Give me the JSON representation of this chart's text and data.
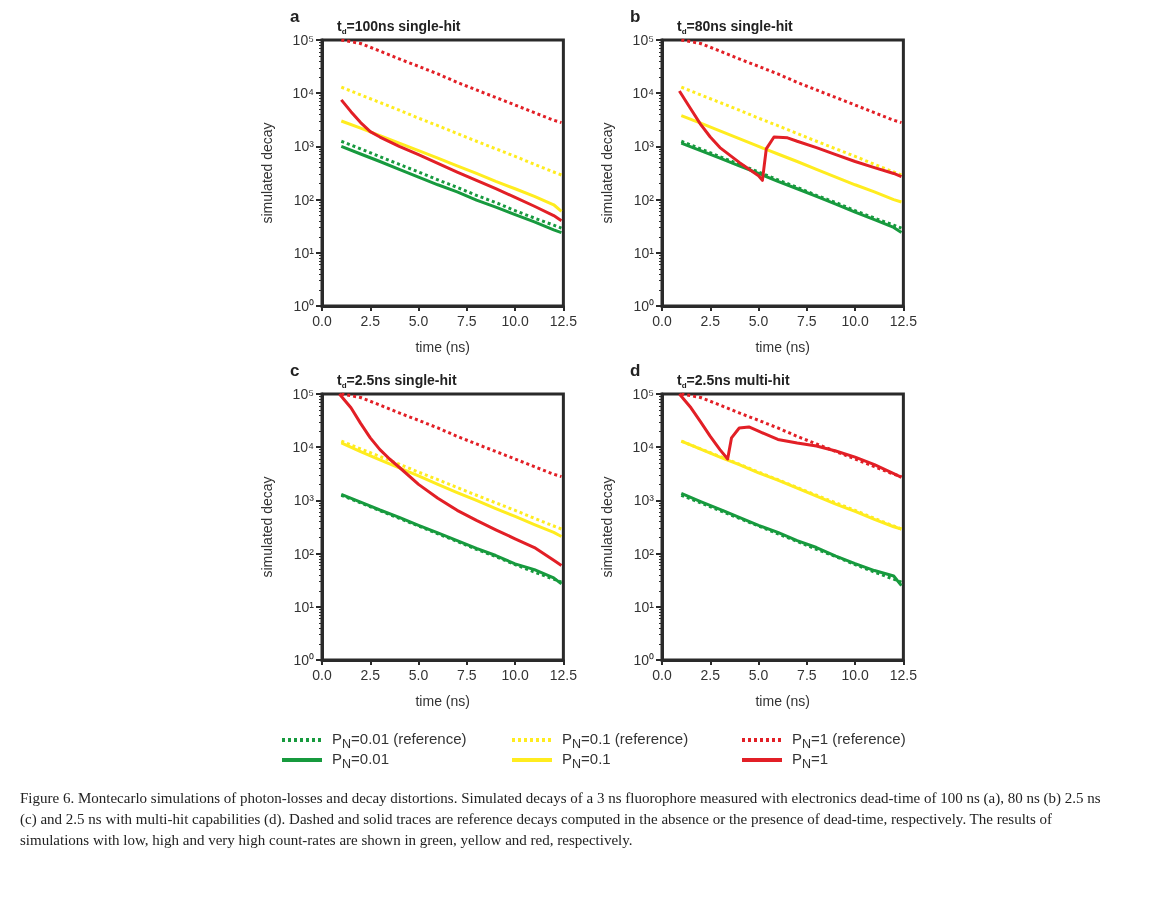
{
  "chart_data": [
    {
      "type": "line",
      "title": "t$_{d}$=100ns single-hit",
      "xlabel": "time (ns)",
      "ylabel": "simulated decay",
      "annotations": [
        "a"
      ],
      "log": "y",
      "marker": "none",
      "xlim": [
        0,
        12.5
      ],
      "ylim": [
        1,
        100000
      ],
      "xticks": [
        {
          "value": 0,
          "label": "0.0"
        },
        2.5,
        {
          "value": 5,
          "label": "5.0"
        },
        7.5,
        {
          "value": 10,
          "label": "10.0"
        },
        12.5
      ],
      "yticks": [
        {
          "value": 1,
          "label": "10⁰"
        },
        {
          "value": 10,
          "label": "10¹"
        },
        {
          "value": 100,
          "label": "10²"
        },
        {
          "value": 1000,
          "label": "10³"
        },
        {
          "value": 10000,
          "label": "10⁴"
        },
        {
          "value": 100000,
          "label": "10⁵"
        }
      ],
      "x": [
        1,
        2,
        3,
        4,
        5,
        6,
        7,
        8,
        9,
        10,
        11,
        12,
        12.4
      ],
      "series": [
        {
          "color": "#179a3e",
          "line_style": "dotted",
          "values": [
            1250,
            900,
            640,
            460,
            330,
            235,
            170,
            120,
            88,
            62,
            45,
            33,
            29
          ]
        },
        {
          "color": "#179a3e",
          "line_style": "solid",
          "values": [
            1000,
            720,
            520,
            370,
            265,
            190,
            140,
            98,
            72,
            52,
            38,
            27,
            24
          ]
        },
        {
          "color": "#ffec1f",
          "line_style": "dotted",
          "values": [
            13000,
            9300,
            6700,
            4800,
            3400,
            2450,
            1750,
            1250,
            900,
            650,
            460,
            330,
            290
          ]
        },
        {
          "color": "#ffec1f",
          "line_style": "solid",
          "values": [
            3000,
            2200,
            1600,
            1150,
            830,
            600,
            430,
            310,
            220,
            160,
            115,
            80,
            60
          ]
        },
        {
          "color": "#e21f26",
          "line_style": "dotted",
          "values": [
            100000,
            86000,
            62000,
            44000,
            32000,
            23000,
            16000,
            11500,
            8300,
            6000,
            4300,
            3100,
            2800
          ]
        },
        {
          "color": "#e21f26",
          "line_style": "solid",
          "x": [
            1,
            1.5,
            2,
            2.5,
            3,
            4,
            5,
            6,
            7,
            8,
            9,
            10,
            11,
            12,
            12.4
          ],
          "values": [
            7500,
            4500,
            2800,
            1900,
            1500,
            1000,
            700,
            480,
            330,
            230,
            160,
            110,
            75,
            50,
            40
          ]
        }
      ]
    },
    {
      "type": "line",
      "title": "t$_{d}$=80ns single-hit",
      "xlabel": "time (ns)",
      "ylabel": "simulated decay",
      "annotations": [
        "b"
      ],
      "log": "y",
      "marker": "none",
      "xlim": [
        0,
        12.5
      ],
      "ylim": [
        1,
        100000
      ],
      "xticks": [
        {
          "value": 0,
          "label": "0.0"
        },
        2.5,
        {
          "value": 5,
          "label": "5.0"
        },
        7.5,
        {
          "value": 10,
          "label": "10.0"
        },
        12.5
      ],
      "yticks": [
        {
          "value": 1,
          "label": "10⁰"
        },
        {
          "value": 10,
          "label": "10¹"
        },
        {
          "value": 100,
          "label": "10²"
        },
        {
          "value": 1000,
          "label": "10³"
        },
        {
          "value": 10000,
          "label": "10⁴"
        },
        {
          "value": 100000,
          "label": "10⁵"
        }
      ],
      "x": [
        1,
        2,
        3,
        4,
        5,
        6,
        7,
        8,
        9,
        10,
        11,
        12,
        12.4
      ],
      "series": [
        {
          "color": "#179a3e",
          "line_style": "dotted",
          "values": [
            1250,
            900,
            640,
            460,
            330,
            235,
            170,
            120,
            88,
            62,
            45,
            33,
            29
          ]
        },
        {
          "color": "#179a3e",
          "line_style": "solid",
          "values": [
            1150,
            830,
            600,
            430,
            310,
            220,
            160,
            115,
            82,
            58,
            42,
            30,
            24
          ]
        },
        {
          "color": "#ffec1f",
          "line_style": "dotted",
          "values": [
            13000,
            9300,
            6700,
            4800,
            3400,
            2450,
            1750,
            1250,
            900,
            650,
            460,
            330,
            290
          ]
        },
        {
          "color": "#ffec1f",
          "line_style": "solid",
          "values": [
            3800,
            2750,
            1950,
            1400,
            1000,
            720,
            520,
            370,
            265,
            190,
            140,
            100,
            90
          ]
        },
        {
          "color": "#e21f26",
          "line_style": "dotted",
          "values": [
            100000,
            86000,
            62000,
            44000,
            32000,
            23000,
            16000,
            11500,
            8300,
            6000,
            4300,
            3100,
            2800
          ]
        },
        {
          "color": "#e21f26",
          "line_style": "solid",
          "x": [
            0.9,
            1.5,
            2,
            2.5,
            3,
            4,
            5,
            5.2,
            5.4,
            5.8,
            6.5,
            7,
            8,
            9,
            10,
            11,
            12,
            12.4
          ],
          "values": [
            11000,
            5000,
            2600,
            1500,
            950,
            500,
            280,
            230,
            900,
            1500,
            1450,
            1250,
            950,
            700,
            520,
            400,
            310,
            270
          ]
        }
      ]
    },
    {
      "type": "line",
      "title": "t$_{d}$=2.5ns single-hit",
      "xlabel": "time (ns)",
      "ylabel": "simulated decay",
      "annotations": [
        "c"
      ],
      "log": "y",
      "marker": "none",
      "xlim": [
        0,
        12.5
      ],
      "ylim": [
        1,
        100000
      ],
      "xticks": [
        {
          "value": 0,
          "label": "0.0"
        },
        2.5,
        {
          "value": 5,
          "label": "5.0"
        },
        7.5,
        {
          "value": 10,
          "label": "10.0"
        },
        12.5
      ],
      "yticks": [
        {
          "value": 1,
          "label": "10⁰"
        },
        {
          "value": 10,
          "label": "10¹"
        },
        {
          "value": 100,
          "label": "10²"
        },
        {
          "value": 1000,
          "label": "10³"
        },
        {
          "value": 10000,
          "label": "10⁴"
        },
        {
          "value": 100000,
          "label": "10⁵"
        }
      ],
      "x": [
        1,
        2,
        3,
        4,
        5,
        6,
        7,
        8,
        9,
        10,
        11,
        12,
        12.4
      ],
      "series": [
        {
          "color": "#179a3e",
          "line_style": "dotted",
          "values": [
            1250,
            900,
            640,
            460,
            330,
            235,
            170,
            120,
            88,
            62,
            45,
            33,
            29
          ]
        },
        {
          "color": "#179a3e",
          "line_style": "solid",
          "values": [
            1300,
            930,
            660,
            480,
            340,
            245,
            175,
            125,
            92,
            64,
            50,
            35,
            27
          ]
        },
        {
          "color": "#ffec1f",
          "line_style": "dotted",
          "values": [
            13000,
            9300,
            6700,
            4800,
            3400,
            2450,
            1750,
            1250,
            900,
            650,
            460,
            330,
            290
          ]
        },
        {
          "color": "#ffec1f",
          "line_style": "solid",
          "values": [
            12000,
            8300,
            5800,
            4100,
            2900,
            2000,
            1400,
            1000,
            700,
            500,
            350,
            250,
            210
          ]
        },
        {
          "color": "#e21f26",
          "line_style": "dotted",
          "values": [
            100000,
            86000,
            62000,
            44000,
            32000,
            23000,
            16000,
            11500,
            8300,
            6000,
            4300,
            3100,
            2800
          ]
        },
        {
          "color": "#e21f26",
          "line_style": "solid",
          "x": [
            0.9,
            1.5,
            2,
            2.5,
            3,
            3.5,
            4,
            5,
            6,
            7,
            8,
            9,
            10,
            11,
            12,
            12.4
          ],
          "values": [
            100000,
            55000,
            28000,
            15000,
            9000,
            6000,
            4200,
            2000,
            1100,
            650,
            420,
            280,
            190,
            130,
            75,
            60
          ]
        }
      ]
    },
    {
      "type": "line",
      "title": "t$_{d}$=2.5ns multi-hit",
      "xlabel": "time (ns)",
      "ylabel": "simulated decay",
      "annotations": [
        "d",
        "Figure 6. Montecarlo simulations of photon-losses and decay distortions. Simulated decays of a 3 ns fluorophore measured with electronics dead-time of 100 ns (a), 80 ns (b) 2.5 ns (c) and 2.5 ns with multi-hit capabilities (d). Dashed and solid traces are reference decays computed in the absence or the presence of dead-time, respectively. The results of simulations with low, high and very high count-rates are shown in green, yellow and red, respectively."
      ],
      "log": "y",
      "marker": "none",
      "legend": "bottom",
      "xlim": [
        0,
        12.5
      ],
      "ylim": [
        1,
        100000
      ],
      "xticks": [
        {
          "value": 0,
          "label": "0.0"
        },
        2.5,
        {
          "value": 5,
          "label": "5.0"
        },
        7.5,
        {
          "value": 10,
          "label": "10.0"
        },
        12.5
      ],
      "yticks": [
        {
          "value": 1,
          "label": "10⁰"
        },
        {
          "value": 10,
          "label": "10¹"
        },
        {
          "value": 100,
          "label": "10²"
        },
        {
          "value": 1000,
          "label": "10³"
        },
        {
          "value": 10000,
          "label": "10⁴"
        },
        {
          "value": 100000,
          "label": "10⁵"
        }
      ],
      "x": [
        1,
        2,
        3,
        4,
        5,
        6,
        7,
        8,
        9,
        10,
        11,
        12,
        12.4
      ],
      "series": [
        {
          "name": "P$_{N}$=0.01 (reference)",
          "color": "#179a3e",
          "line_style": "dotted",
          "values": [
            1250,
            900,
            640,
            460,
            330,
            235,
            170,
            120,
            88,
            62,
            45,
            33,
            29
          ]
        },
        {
          "name": "P$_{N}$=0.01",
          "color": "#179a3e",
          "line_style": "solid",
          "values": [
            1350,
            950,
            680,
            480,
            340,
            250,
            175,
            130,
            90,
            65,
            48,
            38,
            25
          ]
        },
        {
          "name": "P$_{N}$=0.1 (reference)",
          "color": "#ffec1f",
          "line_style": "dotted",
          "values": [
            13000,
            9300,
            6700,
            4800,
            3400,
            2450,
            1750,
            1250,
            900,
            650,
            460,
            330,
            290
          ]
        },
        {
          "name": "P$_{N}$=0.1",
          "color": "#ffec1f",
          "line_style": "solid",
          "values": [
            13000,
            9200,
            6500,
            4700,
            3300,
            2400,
            1700,
            1200,
            850,
            620,
            440,
            320,
            290
          ]
        },
        {
          "name": "P$_{N}$=1 (reference)",
          "color": "#e21f26",
          "line_style": "dotted",
          "values": [
            100000,
            86000,
            62000,
            44000,
            32000,
            23000,
            16000,
            11500,
            8300,
            6000,
            4300,
            3100,
            2800
          ]
        },
        {
          "name": "P$_{N}$=1",
          "color": "#e21f26",
          "line_style": "solid",
          "x": [
            0.9,
            1.5,
            2,
            2.5,
            3,
            3.4,
            3.6,
            4,
            4.5,
            5,
            6,
            7,
            8,
            9,
            10,
            11,
            12,
            12.4
          ],
          "values": [
            100000,
            55000,
            30000,
            16000,
            9000,
            6000,
            15000,
            23000,
            24000,
            20000,
            14000,
            12000,
            10500,
            8500,
            6500,
            4700,
            3200,
            2700
          ]
        }
      ]
    }
  ]
}
